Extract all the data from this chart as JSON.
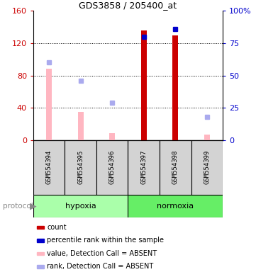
{
  "title": "GDS3858 / 205400_at",
  "samples": [
    "GSM554394",
    "GSM554395",
    "GSM554396",
    "GSM554397",
    "GSM554398",
    "GSM554399"
  ],
  "ylim_left": [
    0,
    160
  ],
  "ylim_right": [
    0,
    100
  ],
  "yticks_left": [
    0,
    40,
    80,
    120,
    160
  ],
  "yticks_right": [
    0,
    25,
    50,
    75,
    100
  ],
  "yticklabels_left": [
    "0",
    "40",
    "80",
    "120",
    "160"
  ],
  "yticklabels_right": [
    "0",
    "25",
    "50",
    "75",
    "100%"
  ],
  "count_color": "#CC0000",
  "count_absent_color": "#FFB6C1",
  "rank_color": "#0000CC",
  "rank_absent_color": "#AAAAEE",
  "count_values": [
    null,
    null,
    null,
    136,
    130,
    null
  ],
  "count_absent_values": [
    88,
    35,
    9,
    null,
    null,
    7
  ],
  "rank_values": [
    null,
    null,
    null,
    80,
    86,
    null
  ],
  "rank_absent_values": [
    60,
    46,
    29,
    null,
    null,
    18
  ],
  "hypoxia_color_light": "#AAFFAA",
  "hypoxia_color": "#66EE66",
  "normoxia_color": "#33DD33",
  "legend_items": [
    {
      "color": "#CC0000",
      "label": "count"
    },
    {
      "color": "#0000CC",
      "label": "percentile rank within the sample"
    },
    {
      "color": "#FFB6C1",
      "label": "value, Detection Call = ABSENT"
    },
    {
      "color": "#AAAAEE",
      "label": "rank, Detection Call = ABSENT"
    }
  ]
}
